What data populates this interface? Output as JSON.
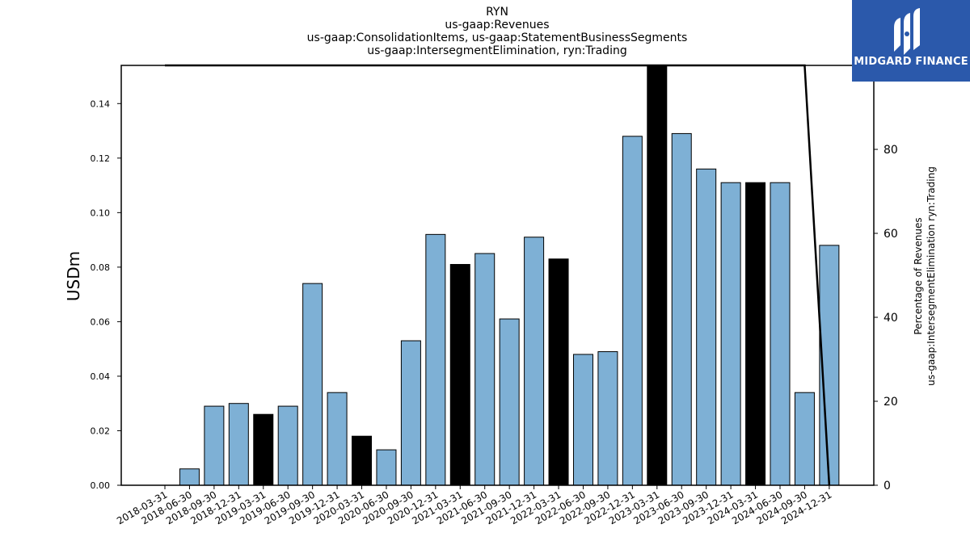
{
  "title_lines": [
    "RYN",
    "us-gaap:Revenues",
    "us-gaap:ConsolidationItems, us-gaap:StatementBusinessSegments",
    "us-gaap:IntersegmentElimination, ryn:Trading"
  ],
  "logo": {
    "text": "MIDGARD FINANCE",
    "background": "#2b59ab"
  },
  "chart_data": {
    "type": "bar",
    "ylabel": "USDm",
    "y2label_lines": [
      "Percentage of Revenues",
      "us-gaap:IntersegmentElimination ryn:Trading"
    ],
    "ylim": [
      0,
      0.154
    ],
    "y2lim": [
      0,
      100
    ],
    "yticks": [
      "0.00",
      "0.02",
      "0.04",
      "0.06",
      "0.08",
      "0.10",
      "0.12",
      "0.14"
    ],
    "y2ticks": [
      "0",
      "20",
      "40",
      "60",
      "80"
    ],
    "categories": [
      "2018-03-31",
      "2018-06-30",
      "2018-09-30",
      "2018-12-31",
      "2019-03-31",
      "2019-06-30",
      "2019-09-30",
      "2019-12-31",
      "2020-03-31",
      "2020-06-30",
      "2020-09-30",
      "2020-12-31",
      "2021-03-31",
      "2021-06-30",
      "2021-09-30",
      "2021-12-31",
      "2022-03-31",
      "2022-06-30",
      "2022-09-30",
      "2022-12-31",
      "2023-03-31",
      "2023-06-30",
      "2023-09-30",
      "2023-12-31",
      "2024-03-31",
      "2024-06-30",
      "2024-09-30",
      "2024-12-31"
    ],
    "values": [
      null,
      0.006,
      0.029,
      0.03,
      0.026,
      0.029,
      0.074,
      0.034,
      0.018,
      0.013,
      0.053,
      0.092,
      0.081,
      0.085,
      0.061,
      0.091,
      0.083,
      0.048,
      0.049,
      0.128,
      0.16,
      0.129,
      0.116,
      0.111,
      0.111,
      0.111,
      0.034,
      0.088
    ],
    "highlight": [
      false,
      false,
      false,
      false,
      true,
      false,
      false,
      false,
      true,
      false,
      false,
      false,
      true,
      false,
      false,
      false,
      true,
      false,
      false,
      false,
      true,
      false,
      false,
      false,
      true,
      false,
      false,
      false
    ],
    "percentage_line": [
      100,
      100,
      100,
      100,
      100,
      100,
      100,
      100,
      100,
      100,
      100,
      100,
      100,
      100,
      100,
      100,
      100,
      100,
      100,
      100,
      100,
      100,
      100,
      100,
      100,
      100,
      100,
      0
    ],
    "colors": {
      "bar": "#7eb0d5",
      "highlight": "#000000",
      "line": "#000000"
    }
  }
}
